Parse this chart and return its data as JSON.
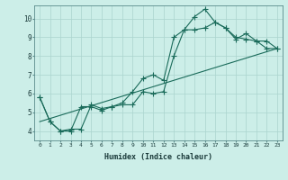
{
  "xlabel": "Humidex (Indice chaleur)",
  "bg_color": "#cceee8",
  "grid_color": "#aad4ce",
  "line_color": "#1a6b5a",
  "xlim": [
    -0.5,
    23.5
  ],
  "ylim": [
    3.5,
    10.7
  ],
  "xticks": [
    0,
    1,
    2,
    3,
    4,
    5,
    6,
    7,
    8,
    9,
    10,
    11,
    12,
    13,
    14,
    15,
    16,
    17,
    18,
    19,
    20,
    21,
    22,
    23
  ],
  "yticks": [
    4,
    5,
    6,
    7,
    8,
    9,
    10
  ],
  "line1_x": [
    0,
    1,
    2,
    3,
    4,
    5,
    6,
    7,
    8,
    9,
    10,
    11,
    12,
    13,
    14,
    15,
    16,
    17,
    18,
    19,
    20,
    21,
    22,
    23
  ],
  "line1_y": [
    5.8,
    4.5,
    4.0,
    4.0,
    5.3,
    5.3,
    5.1,
    5.3,
    5.5,
    6.1,
    6.8,
    7.0,
    6.7,
    9.0,
    9.4,
    10.1,
    10.5,
    9.8,
    9.5,
    8.9,
    9.2,
    8.8,
    8.8,
    8.4
  ],
  "line2_x": [
    0,
    1,
    2,
    3,
    4,
    5,
    6,
    7,
    8,
    9,
    10,
    11,
    12,
    13,
    14,
    15,
    16,
    17,
    18,
    19,
    20,
    21,
    22,
    23
  ],
  "line2_y": [
    5.8,
    4.5,
    4.0,
    4.1,
    4.1,
    5.4,
    5.2,
    5.3,
    5.4,
    5.4,
    6.1,
    6.0,
    6.1,
    8.0,
    9.4,
    9.4,
    9.5,
    9.8,
    9.5,
    9.0,
    8.9,
    8.8,
    8.4,
    8.4
  ],
  "line3_x": [
    0,
    23
  ],
  "line3_y": [
    4.5,
    8.4
  ],
  "figsize": [
    3.2,
    2.0
  ],
  "dpi": 100
}
